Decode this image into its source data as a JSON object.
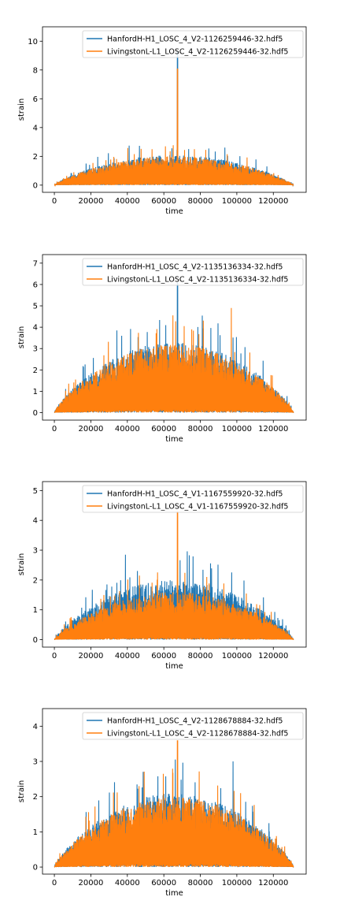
{
  "chart_data": [
    {
      "type": "line",
      "xlabel": "time",
      "ylabel": "strain",
      "xlim": [
        -6500,
        138000
      ],
      "ylim": [
        -0.5,
        11
      ],
      "x_ticks": [
        0,
        20000,
        40000,
        60000,
        80000,
        100000,
        120000
      ],
      "y_ticks": [
        0,
        2,
        4,
        6,
        8,
        10
      ],
      "x_tick_labels": [
        "0",
        "20000",
        "40000",
        "60000",
        "80000",
        "100000",
        "120000"
      ],
      "y_tick_labels": [
        "0",
        "2",
        "4",
        "6",
        "8",
        "10"
      ],
      "legend_placement": "top-right",
      "x_range": [
        0,
        131072
      ],
      "series": [
        {
          "name": "HanfordH-H1_LOSC_4_V2-1126259446-32.hdf5",
          "color": "#1f77b4",
          "envelope_peak": 2.1,
          "spike": {
            "x": 67500,
            "y": 9.3
          }
        },
        {
          "name": "LivingstonL-L1_LOSC_4_V2-1126259446-32.hdf5",
          "color": "#ff7f0e",
          "envelope_peak": 2.0,
          "spike": {
            "x": 67500,
            "y": 8.1
          }
        }
      ]
    },
    {
      "type": "line",
      "xlabel": "time",
      "ylabel": "strain",
      "xlim": [
        -6500,
        138000
      ],
      "ylim": [
        -0.35,
        7.4
      ],
      "x_ticks": [
        0,
        20000,
        40000,
        60000,
        80000,
        100000,
        120000
      ],
      "y_ticks": [
        0,
        1,
        2,
        3,
        4,
        5,
        6,
        7
      ],
      "x_tick_labels": [
        "0",
        "20000",
        "40000",
        "60000",
        "80000",
        "100000",
        "120000"
      ],
      "y_tick_labels": [
        "0",
        "1",
        "2",
        "3",
        "4",
        "5",
        "6",
        "7"
      ],
      "legend_placement": "top-right",
      "x_range": [
        0,
        131072
      ],
      "series": [
        {
          "name": "HanfordH-H1_LOSC_4_V2-1135136334-32.hdf5",
          "color": "#1f77b4",
          "envelope_peak": 3.3,
          "spike": {
            "x": 67500,
            "y": 6.1
          }
        },
        {
          "name": "LivingstonL-L1_LOSC_4_V2-1135136334-32.hdf5",
          "color": "#ff7f0e",
          "envelope_peak": 3.2,
          "spike": {
            "x": 97000,
            "y": 4.9
          }
        }
      ]
    },
    {
      "type": "line",
      "xlabel": "time",
      "ylabel": "strain",
      "xlim": [
        -6500,
        138000
      ],
      "ylim": [
        -0.25,
        5.3
      ],
      "x_ticks": [
        0,
        20000,
        40000,
        60000,
        80000,
        100000,
        120000
      ],
      "y_ticks": [
        0,
        1,
        2,
        3,
        4,
        5
      ],
      "x_tick_labels": [
        "0",
        "20000",
        "40000",
        "60000",
        "80000",
        "100000",
        "120000"
      ],
      "y_tick_labels": [
        "0",
        "1",
        "2",
        "3",
        "4",
        "5"
      ],
      "legend_placement": "top-right",
      "x_range": [
        0,
        131072
      ],
      "series": [
        {
          "name": "HanfordH-H1_LOSC_4_V1-1167559920-32.hdf5",
          "color": "#1f77b4",
          "envelope_peak": 2.0,
          "spike": {
            "x": 39000,
            "y": 2.85
          }
        },
        {
          "name": "LivingstonL-L1_LOSC_4_V1-1167559920-32.hdf5",
          "color": "#ff7f0e",
          "envelope_peak": 1.6,
          "spike": {
            "x": 67500,
            "y": 4.3
          }
        }
      ]
    },
    {
      "type": "line",
      "xlabel": "time",
      "ylabel": "strain",
      "xlim": [
        -6500,
        138000
      ],
      "ylim": [
        -0.2,
        4.5
      ],
      "x_ticks": [
        0,
        20000,
        40000,
        60000,
        80000,
        100000,
        120000
      ],
      "y_ticks": [
        0,
        1,
        2,
        3,
        4
      ],
      "x_tick_labels": [
        "0",
        "20000",
        "40000",
        "60000",
        "80000",
        "100000",
        "120000"
      ],
      "y_tick_labels": [
        "0",
        "1",
        "2",
        "3",
        "4"
      ],
      "legend_placement": "top-right",
      "x_range": [
        0,
        131072
      ],
      "series": [
        {
          "name": "HanfordH-H1_LOSC_4_V2-1128678884-32.hdf5",
          "color": "#1f77b4",
          "envelope_peak": 2.1,
          "spike": {
            "x": 98000,
            "y": 3.0
          }
        },
        {
          "name": "LivingstonL-L1_LOSC_4_V2-1128678884-32.hdf5",
          "color": "#ff7f0e",
          "envelope_peak": 2.0,
          "spike": {
            "x": 67500,
            "y": 3.6
          }
        }
      ]
    }
  ]
}
